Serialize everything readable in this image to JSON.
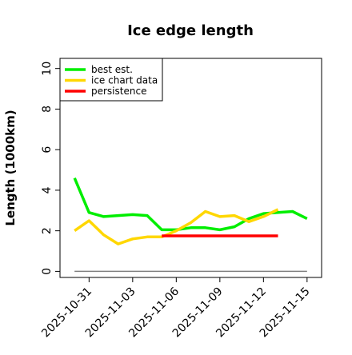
{
  "chart_data": {
    "type": "line",
    "title": "Ice edge length",
    "xlabel": "",
    "ylabel": "Length (1000km)",
    "x": [
      "2025-10-30",
      "2025-10-31",
      "2025-11-01",
      "2025-11-02",
      "2025-11-03",
      "2025-11-04",
      "2025-11-05",
      "2025-11-06",
      "2025-11-07",
      "2025-11-08",
      "2025-11-09",
      "2025-11-10",
      "2025-11-11",
      "2025-11-12",
      "2025-11-13",
      "2025-11-14",
      "2025-11-15"
    ],
    "x_tick_labels": [
      "2025-10-31",
      "2025-11-03",
      "2025-11-06",
      "2025-11-09",
      "2025-11-12",
      "2025-11-15"
    ],
    "y_tick_labels": [
      "0",
      "2",
      "4",
      "6",
      "8",
      "10"
    ],
    "ylim": [
      -0.3,
      10.5
    ],
    "grid": false,
    "legend_position": "top-left",
    "series": [
      {
        "name": "best est.",
        "color": "#00ee00",
        "x": [
          "2025-10-30",
          "2025-10-31",
          "2025-11-01",
          "2025-11-02",
          "2025-11-03",
          "2025-11-04",
          "2025-11-05",
          "2025-11-06",
          "2025-11-07",
          "2025-11-08",
          "2025-11-09",
          "2025-11-10",
          "2025-11-11",
          "2025-11-12",
          "2025-11-13",
          "2025-11-14",
          "2025-11-15"
        ],
        "values": [
          4.6,
          2.9,
          2.7,
          2.75,
          2.8,
          2.75,
          2.05,
          2.05,
          2.15,
          2.15,
          2.05,
          2.2,
          2.6,
          2.85,
          2.9,
          2.95,
          2.6
        ]
      },
      {
        "name": "ice chart data",
        "color": "#ffd700",
        "x": [
          "2025-10-30",
          "2025-10-31",
          "2025-11-01",
          "2025-11-02",
          "2025-11-03",
          "2025-11-04",
          "2025-11-05",
          "2025-11-06",
          "2025-11-07",
          "2025-11-08",
          "2025-11-09",
          "2025-11-10",
          "2025-11-11",
          "2025-11-12",
          "2025-11-13"
        ],
        "values": [
          2.0,
          2.5,
          1.8,
          1.35,
          1.6,
          1.7,
          1.7,
          2.0,
          2.4,
          2.95,
          2.7,
          2.75,
          2.45,
          2.7,
          3.05
        ]
      },
      {
        "name": "persistence",
        "color": "#ff0000",
        "x": [
          "2025-11-05",
          "2025-11-06",
          "2025-11-07",
          "2025-11-08",
          "2025-11-09",
          "2025-11-10",
          "2025-11-11",
          "2025-11-12",
          "2025-11-13"
        ],
        "values": [
          1.75,
          1.75,
          1.75,
          1.75,
          1.75,
          1.75,
          1.75,
          1.75,
          1.75
        ]
      }
    ],
    "reference_line": {
      "color": "#808080",
      "y": 0,
      "x_start": "2025-10-30",
      "x_end": "2025-11-15"
    }
  }
}
